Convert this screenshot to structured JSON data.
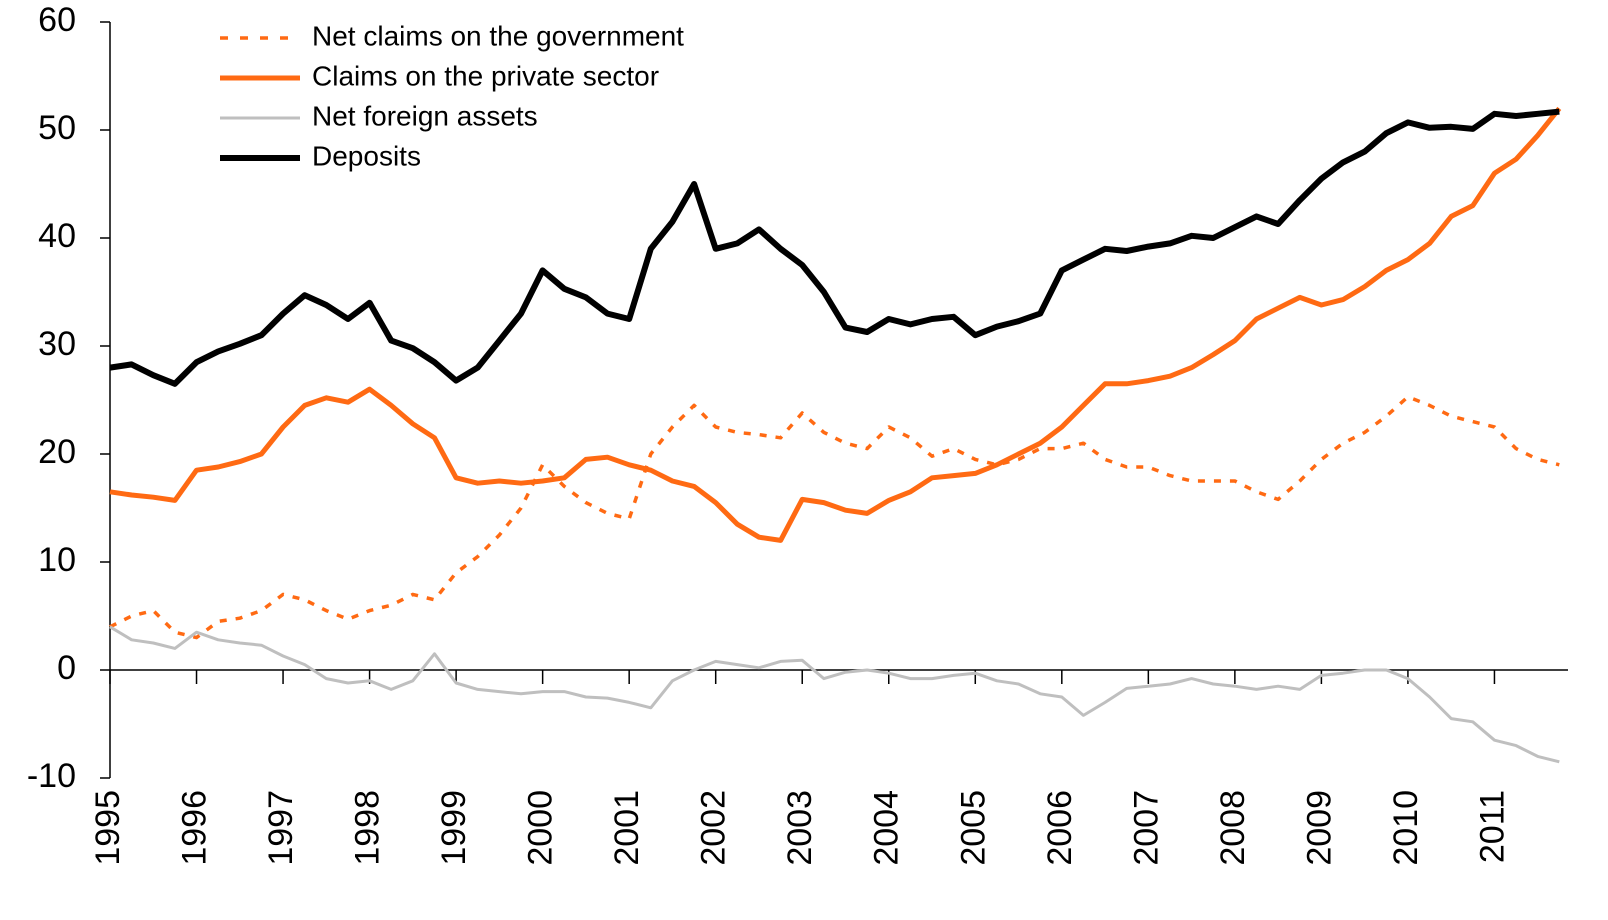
{
  "chart_data": {
    "type": "line",
    "x": [
      1995,
      1995.25,
      1995.5,
      1995.75,
      1996,
      1996.25,
      1996.5,
      1996.75,
      1997,
      1997.25,
      1997.5,
      1997.75,
      1998,
      1998.25,
      1998.5,
      1998.75,
      1999,
      1999.25,
      1999.5,
      1999.75,
      2000,
      2000.25,
      2000.5,
      2000.75,
      2001,
      2001.25,
      2001.5,
      2001.75,
      2002,
      2002.25,
      2002.5,
      2002.75,
      2003,
      2003.25,
      2003.5,
      2003.75,
      2004,
      2004.25,
      2004.5,
      2004.75,
      2005,
      2005.25,
      2005.5,
      2005.75,
      2006,
      2006.25,
      2006.5,
      2006.75,
      2007,
      2007.25,
      2007.5,
      2007.75,
      2008,
      2008.25,
      2008.5,
      2008.75,
      2009,
      2009.25,
      2009.5,
      2009.75,
      2010,
      2010.25,
      2010.5,
      2010.75,
      2011,
      2011.25,
      2011.5,
      2011.75
    ],
    "series": [
      {
        "name": "Net claims on the government",
        "color": "#ff6a13",
        "linestyle": "dotted",
        "values": [
          4,
          5,
          5.5,
          3.5,
          3,
          4.5,
          4.8,
          5.5,
          7,
          6.5,
          5.5,
          4.7,
          5.5,
          6,
          7,
          6.5,
          9,
          10.5,
          12.5,
          15,
          19,
          17,
          15.5,
          14.5,
          14,
          20,
          22.5,
          24.5,
          22.5,
          22,
          21.8,
          21.5,
          23.8,
          22,
          21,
          20.5,
          22.5,
          21.5,
          19.8,
          20.5,
          19.5,
          19,
          19.5,
          20.5,
          20.5,
          21,
          19.5,
          18.8,
          18.8,
          18,
          17.5,
          17.5,
          17.5,
          16.5,
          15.8,
          17.5,
          19.5,
          21,
          22,
          23.5,
          25.3,
          24.5,
          23.5,
          23,
          22.5,
          20.5,
          19.5,
          19
        ]
      },
      {
        "name": "Claims on the private sector",
        "color": "#ff6a13",
        "linestyle": "solid",
        "values": [
          16.5,
          16.2,
          16,
          15.7,
          18.5,
          18.8,
          19.3,
          20,
          22.5,
          24.5,
          25.2,
          24.8,
          26,
          24.5,
          22.8,
          21.5,
          17.8,
          17.3,
          17.5,
          17.3,
          17.5,
          17.8,
          19.5,
          19.7,
          19,
          18.5,
          17.5,
          17,
          15.5,
          13.5,
          12.3,
          12,
          15.8,
          15.5,
          14.8,
          14.5,
          15.7,
          16.5,
          17.8,
          18,
          18.2,
          19,
          20,
          21,
          22.5,
          24.5,
          26.5,
          26.5,
          26.8,
          27.2,
          28,
          29.2,
          30.5,
          32.5,
          33.5,
          34.5,
          33.8,
          34.3,
          35.5,
          37,
          38,
          39.5,
          42,
          43,
          46,
          47.3,
          49.5,
          52
        ]
      },
      {
        "name": "Net foreign assets",
        "color": "#bfbfbf",
        "linestyle": "solid",
        "values": [
          4,
          2.8,
          2.5,
          2,
          3.5,
          2.8,
          2.5,
          2.3,
          1.3,
          0.5,
          -0.8,
          -1.2,
          -1,
          -1.8,
          -1,
          1.5,
          -1.2,
          -1.8,
          -2,
          -2.2,
          -2,
          -2,
          -2.5,
          -2.6,
          -3,
          -3.5,
          -1,
          0,
          0.8,
          0.5,
          0.2,
          0.8,
          0.9,
          -0.8,
          -0.2,
          0,
          -0.3,
          -0.8,
          -0.8,
          -0.5,
          -0.3,
          -1,
          -1.3,
          -2.2,
          -2.5,
          -4.2,
          -3,
          -1.7,
          -1.5,
          -1.3,
          -0.8,
          -1.3,
          -1.5,
          -1.8,
          -1.5,
          -1.8,
          -0.5,
          -0.3,
          0,
          0,
          -0.8,
          -2.5,
          -4.5,
          -4.8,
          -6.5,
          -7,
          -8,
          -8.5
        ]
      },
      {
        "name": "Deposits",
        "color": "#000000",
        "linestyle": "solid",
        "values": [
          28,
          28.3,
          27.3,
          26.5,
          28.5,
          29.5,
          30.2,
          31,
          33,
          34.7,
          33.8,
          32.5,
          34,
          30.5,
          29.8,
          28.5,
          26.8,
          28,
          30.5,
          33,
          37,
          35.3,
          34.5,
          33,
          32.5,
          39,
          41.5,
          45,
          39,
          39.5,
          40.8,
          39,
          37.5,
          35,
          31.7,
          31.3,
          32.5,
          32,
          32.5,
          32.7,
          31,
          31.8,
          32.3,
          33,
          37,
          38,
          39,
          38.8,
          39.2,
          39.5,
          40.2,
          40,
          41,
          42,
          41.3,
          43.5,
          45.5,
          47,
          48,
          49.7,
          50.7,
          50.2,
          50.3,
          50.1,
          51.5,
          51.3,
          51.5,
          51.7
        ]
      }
    ],
    "xlim": [
      1995,
      2011.85
    ],
    "xticks": [
      1995,
      1996,
      1997,
      1998,
      1999,
      2000,
      2001,
      2002,
      2003,
      2004,
      2005,
      2006,
      2007,
      2008,
      2009,
      2010,
      2011
    ],
    "ylim": [
      -10,
      60
    ],
    "yticks": [
      -10,
      0,
      10,
      20,
      30,
      40,
      50,
      60
    ],
    "legend": "upper left"
  }
}
